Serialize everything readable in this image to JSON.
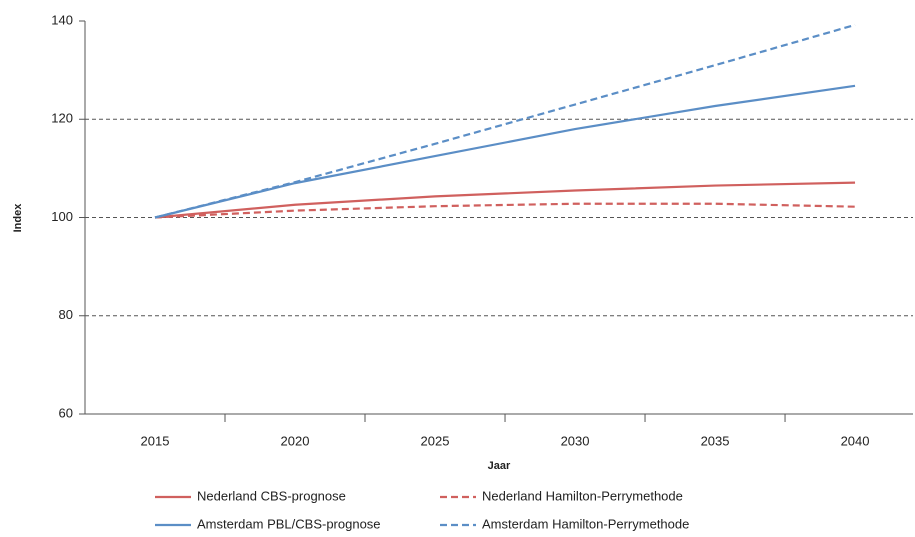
{
  "chart_data": {
    "type": "line",
    "x_label": "Jaar",
    "y_label": "Index",
    "x": [
      2015,
      2020,
      2025,
      2030,
      2035,
      2040
    ],
    "series": [
      {
        "name": "Nederland CBS-prognose",
        "color": "#d0605e",
        "dash": false,
        "values": [
          100,
          102.6,
          104.3,
          105.5,
          106.5,
          107.1
        ]
      },
      {
        "name": "Nederland Hamilton-Perrymethode",
        "color": "#d0605e",
        "dash": true,
        "values": [
          100,
          101.4,
          102.3,
          102.8,
          102.8,
          102.2
        ]
      },
      {
        "name": "Amsterdam PBL/CBS-prognose",
        "color": "#5b8ec6",
        "dash": false,
        "values": [
          100,
          107,
          112.5,
          118,
          122.7,
          126.8
        ]
      },
      {
        "name": "Amsterdam Hamilton-Perrymethode",
        "color": "#5b8ec6",
        "dash": true,
        "values": [
          100,
          107.2,
          115,
          123,
          131,
          139.2
        ]
      }
    ],
    "xlim": [
      2012.5,
      2042.07
    ],
    "xticks": [
      2015,
      2020,
      2025,
      2030,
      2035,
      2040
    ],
    "ylim": [
      60,
      140
    ],
    "yticks": [
      60,
      80,
      100,
      120,
      140
    ],
    "grid": true
  }
}
